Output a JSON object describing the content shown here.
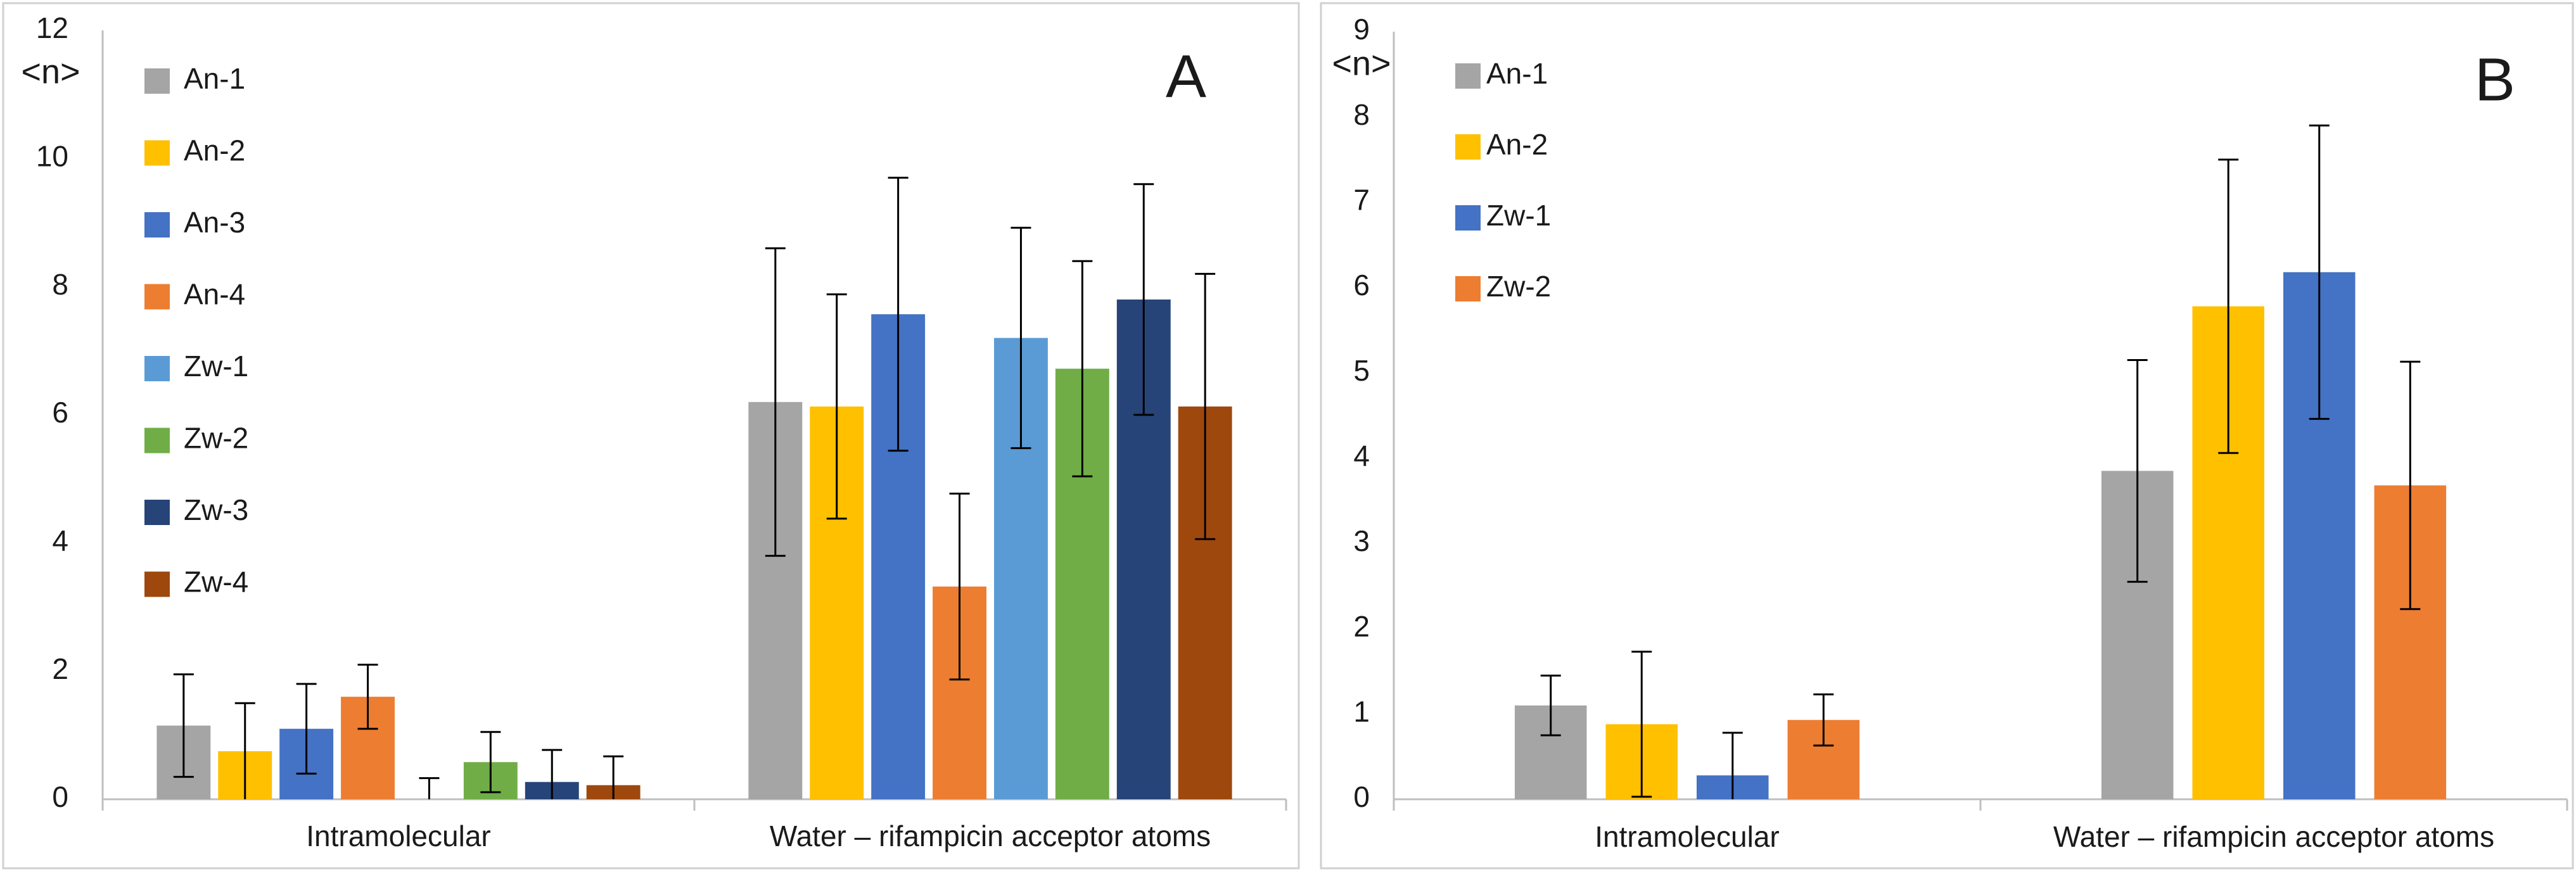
{
  "chart_data": [
    {
      "type": "bar",
      "panel_label": "A",
      "ylabel": "<n>",
      "ylim": [
        0,
        12
      ],
      "yticks": [
        0,
        2,
        4,
        6,
        8,
        10,
        12
      ],
      "categories": [
        "Intramolecular",
        "Water – rifampicin acceptor atoms"
      ],
      "legend_position": "left",
      "series": [
        {
          "name": "An-1",
          "color": "#a5a5a5",
          "values": [
            1.15,
            6.2
          ],
          "errors": [
            0.8,
            2.4
          ]
        },
        {
          "name": "An-2",
          "color": "#ffc000",
          "values": [
            0.75,
            6.13
          ],
          "errors": [
            0.75,
            1.75
          ]
        },
        {
          "name": "An-3",
          "color": "#4472c4",
          "values": [
            1.1,
            7.57
          ],
          "errors": [
            0.7,
            2.13
          ]
        },
        {
          "name": "An-4",
          "color": "#ed7d31",
          "values": [
            1.6,
            3.32
          ],
          "errors": [
            0.5,
            1.45
          ]
        },
        {
          "name": "Zw-1",
          "color": "#5b9bd5",
          "values": [
            0.0,
            7.2
          ],
          "errors": [
            0.33,
            1.72
          ]
        },
        {
          "name": "Zw-2",
          "color": "#70ad47",
          "values": [
            0.58,
            6.72
          ],
          "errors": [
            0.47,
            1.68
          ]
        },
        {
          "name": "Zw-3",
          "color": "#264478",
          "values": [
            0.27,
            7.8
          ],
          "errors": [
            0.5,
            1.8
          ]
        },
        {
          "name": "Zw-4",
          "color": "#9e480e",
          "values": [
            0.22,
            6.13
          ],
          "errors": [
            0.45,
            2.07
          ]
        }
      ]
    },
    {
      "type": "bar",
      "panel_label": "B",
      "ylabel": "<n>",
      "ylim": [
        0,
        9
      ],
      "yticks": [
        0,
        1,
        2,
        3,
        4,
        5,
        6,
        7,
        8,
        9
      ],
      "categories": [
        "Intramolecular",
        "Water – rifampicin acceptor atoms"
      ],
      "legend_position": "left",
      "series": [
        {
          "name": "An-1",
          "color": "#a5a5a5",
          "values": [
            1.1,
            3.85
          ],
          "errors": [
            0.35,
            1.3
          ]
        },
        {
          "name": "An-2",
          "color": "#ffc000",
          "values": [
            0.88,
            5.78
          ],
          "errors": [
            0.85,
            1.72
          ]
        },
        {
          "name": "Zw-1",
          "color": "#4472c4",
          "values": [
            0.28,
            6.18
          ],
          "errors": [
            0.5,
            1.72
          ]
        },
        {
          "name": "Zw-2",
          "color": "#ed7d31",
          "values": [
            0.93,
            3.68
          ],
          "errors": [
            0.3,
            1.45
          ]
        }
      ]
    }
  ]
}
